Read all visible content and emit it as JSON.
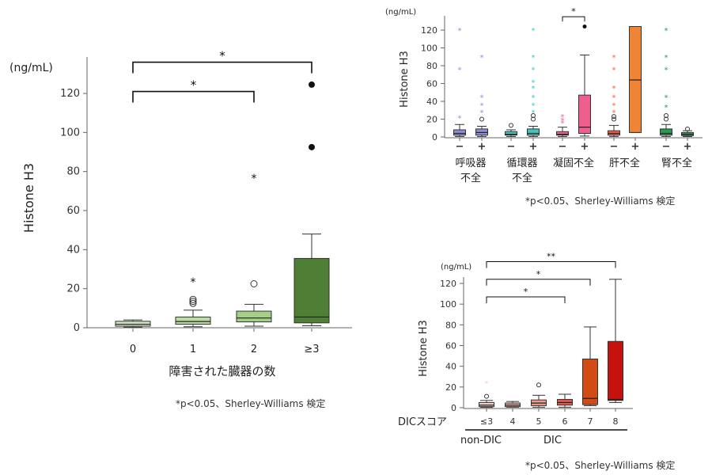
{
  "chart_data": [
    {
      "id": "organs",
      "type": "box",
      "unit": "(ng/mL)",
      "ylabel": "Histone H3",
      "xlabel": "障害された臓器の数",
      "ylim": [
        0,
        135
      ],
      "yticks": [
        0,
        20,
        40,
        60,
        80,
        100,
        120
      ],
      "note": "*p<0.05、Sherley-Williams 検定",
      "categories": [
        "0",
        "1",
        "2",
        "≥3"
      ],
      "colors": [
        "#cfe5c1",
        "#bcdca6",
        "#a3cf87",
        "#4e7f34"
      ],
      "boxes": [
        {
          "min": 0.3,
          "q1": 0.8,
          "median": 1.8,
          "q3": 3.3,
          "max": 4.0,
          "outliers": []
        },
        {
          "min": 0.5,
          "q1": 1.8,
          "median": 3.2,
          "q3": 5.5,
          "max": 9.0,
          "outliers": [
            {
              "y": 12.5,
              "m": "o"
            },
            {
              "y": 13.5,
              "m": "o"
            },
            {
              "y": 14.5,
              "m": "o"
            },
            {
              "y": 24,
              "m": "*"
            }
          ]
        },
        {
          "min": 0.8,
          "q1": 3.0,
          "median": 5.0,
          "q3": 8.5,
          "max": 12.0,
          "outliers": [
            {
              "y": 22.5,
              "m": "o"
            },
            {
              "y": 77,
              "m": "*"
            }
          ]
        },
        {
          "min": 1.0,
          "q1": 2.5,
          "median": 5.5,
          "q3": 35.5,
          "max": 48.0,
          "outliers": [
            {
              "y": 92.5,
              "m": "dot"
            },
            {
              "y": 124.5,
              "m": "dot"
            }
          ]
        }
      ],
      "brackets": [
        {
          "from": 0,
          "to": 2,
          "y": 121,
          "label": "*"
        },
        {
          "from": 0,
          "to": 3,
          "y": 136,
          "label": "*"
        }
      ]
    },
    {
      "id": "failure",
      "type": "box",
      "unit": "(ng/mL)",
      "ylabel": "Histone H3",
      "ylim": [
        0,
        128
      ],
      "yticks": [
        0,
        20,
        40,
        60,
        80,
        100,
        120
      ],
      "note": "*p<0.05、Sherley-Williams 検定",
      "sub_labels": [
        "−",
        "+",
        "−",
        "+",
        "−",
        "+",
        "−",
        "+",
        "−",
        "+"
      ],
      "groups": [
        "呼吸器\n不全",
        "循環器\n不全",
        "凝固不全",
        "肝不全",
        "腎不全"
      ],
      "colors": [
        "#8d8fd6",
        "#8d8fd6",
        "#3fc6c0",
        "#3fc6c0",
        "#ee5f8e",
        "#ee5f8e",
        "#f06244",
        "#ef8336",
        "#2a9a55",
        "#2a9a55"
      ],
      "boxes": [
        {
          "min": 0.5,
          "q1": 2,
          "median": 4,
          "q3": 8,
          "max": 14,
          "outliers": [
            {
              "y": 22,
              "m": "*"
            },
            {
              "y": 76,
              "m": "*"
            },
            {
              "y": 120,
              "m": "*"
            }
          ]
        },
        {
          "min": 0.5,
          "q1": 2,
          "median": 5,
          "q3": 9,
          "max": 12,
          "outliers": [
            {
              "y": 20,
              "m": "o"
            },
            {
              "y": 28,
              "m": "*"
            },
            {
              "y": 36,
              "m": "*"
            },
            {
              "y": 45,
              "m": "*"
            },
            {
              "y": 90,
              "m": "*"
            }
          ]
        },
        {
          "min": 0.5,
          "q1": 2,
          "median": 3,
          "q3": 6,
          "max": 8,
          "outliers": [
            {
              "y": 13,
              "m": "o"
            }
          ]
        },
        {
          "min": 0.5,
          "q1": 2,
          "median": 4,
          "q3": 9,
          "max": 12,
          "outliers": [
            {
              "y": 20,
              "m": "o"
            },
            {
              "y": 24,
              "m": "o"
            },
            {
              "y": 28,
              "m": "*"
            },
            {
              "y": 36,
              "m": "*"
            },
            {
              "y": 45,
              "m": "*"
            },
            {
              "y": 55,
              "m": "*"
            },
            {
              "y": 62,
              "m": "*"
            },
            {
              "y": 76,
              "m": "*"
            },
            {
              "y": 90,
              "m": "*"
            },
            {
              "y": 120,
              "m": "*"
            }
          ]
        },
        {
          "min": 0.5,
          "q1": 2,
          "median": 3,
          "q3": 6,
          "max": 11,
          "outliers": [
            {
              "y": 16,
              "m": "*"
            },
            {
              "y": 19,
              "m": "*"
            },
            {
              "y": 23,
              "m": "*"
            }
          ]
        },
        {
          "min": 1,
          "q1": 4,
          "median": 11,
          "q3": 47,
          "max": 92,
          "outliers": [
            {
              "y": 124,
              "m": "dot"
            }
          ]
        },
        {
          "min": 0.5,
          "q1": 2,
          "median": 4,
          "q3": 7,
          "max": 13,
          "outliers": [
            {
              "y": 20,
              "m": "o"
            },
            {
              "y": 23,
              "m": "o"
            },
            {
              "y": 28,
              "m": "*"
            },
            {
              "y": 36,
              "m": "*"
            },
            {
              "y": 45,
              "m": "*"
            },
            {
              "y": 55,
              "m": "*"
            },
            {
              "y": 76,
              "m": "*"
            },
            {
              "y": 90,
              "m": "*"
            }
          ]
        },
        {
          "min": 5,
          "q1": 5,
          "median": 64,
          "q3": 124,
          "max": 124,
          "outliers": []
        },
        {
          "min": 0.5,
          "q1": 2,
          "median": 4,
          "q3": 9,
          "max": 14,
          "outliers": [
            {
              "y": 20,
              "m": "o"
            },
            {
              "y": 24,
              "m": "o"
            },
            {
              "y": 34,
              "m": "*"
            },
            {
              "y": 45,
              "m": "*"
            },
            {
              "y": 76,
              "m": "*"
            },
            {
              "y": 90,
              "m": "*"
            },
            {
              "y": 120,
              "m": "*"
            }
          ]
        },
        {
          "min": 0.5,
          "q1": 1.5,
          "median": 3,
          "q3": 5,
          "max": 7,
          "outliers": [
            {
              "y": 9,
              "m": "o"
            }
          ]
        }
      ],
      "brackets": [
        {
          "from": 4,
          "to": 5,
          "y": 135,
          "label": "*"
        }
      ]
    },
    {
      "id": "dic",
      "type": "box",
      "unit": "(ng/mL)",
      "ylabel": "Histone H3",
      "ylim": [
        0,
        130
      ],
      "yticks": [
        0,
        20,
        40,
        60,
        80,
        100,
        120
      ],
      "note": "*p<0.05、Sherley-Williams 検定",
      "xlabel": "DICスコア",
      "categories": [
        "≤3",
        "4",
        "5",
        "6",
        "7",
        "8"
      ],
      "groups": [
        {
          "label": "non-DIC",
          "from": 0,
          "to": 0
        },
        {
          "label": "DIC",
          "from": 1,
          "to": 5
        }
      ],
      "colors": [
        "#f7cfc7",
        "#f3b2a4",
        "#ef9a8a",
        "#e4574a",
        "#d24a14",
        "#c5120c"
      ],
      "boxes": [
        {
          "min": 0.3,
          "q1": 1,
          "median": 2.5,
          "q3": 5,
          "max": 7,
          "outliers": [
            {
              "y": 11,
              "m": "o"
            },
            {
              "y": 24,
              "m": "*"
            }
          ]
        },
        {
          "min": 0.5,
          "q1": 1,
          "median": 2.5,
          "q3": 4.5,
          "max": 6,
          "outliers": []
        },
        {
          "min": 0.5,
          "q1": 2,
          "median": 4.5,
          "q3": 7.5,
          "max": 12,
          "outliers": [
            {
              "y": 22,
              "m": "o"
            }
          ]
        },
        {
          "min": 0.5,
          "q1": 2.5,
          "median": 5,
          "q3": 8,
          "max": 13,
          "outliers": []
        },
        {
          "min": 2,
          "q1": 3,
          "median": 9,
          "q3": 47,
          "max": 78,
          "outliers": []
        },
        {
          "min": 5,
          "q1": 7,
          "median": 8,
          "q3": 64,
          "max": 124,
          "outliers": []
        }
      ],
      "brackets": [
        {
          "from": 0,
          "to": 3,
          "y": 107,
          "label": "*"
        },
        {
          "from": 0,
          "to": 4,
          "y": 124,
          "label": "*"
        },
        {
          "from": 0,
          "to": 5,
          "y": 141,
          "label": "**"
        }
      ]
    }
  ]
}
